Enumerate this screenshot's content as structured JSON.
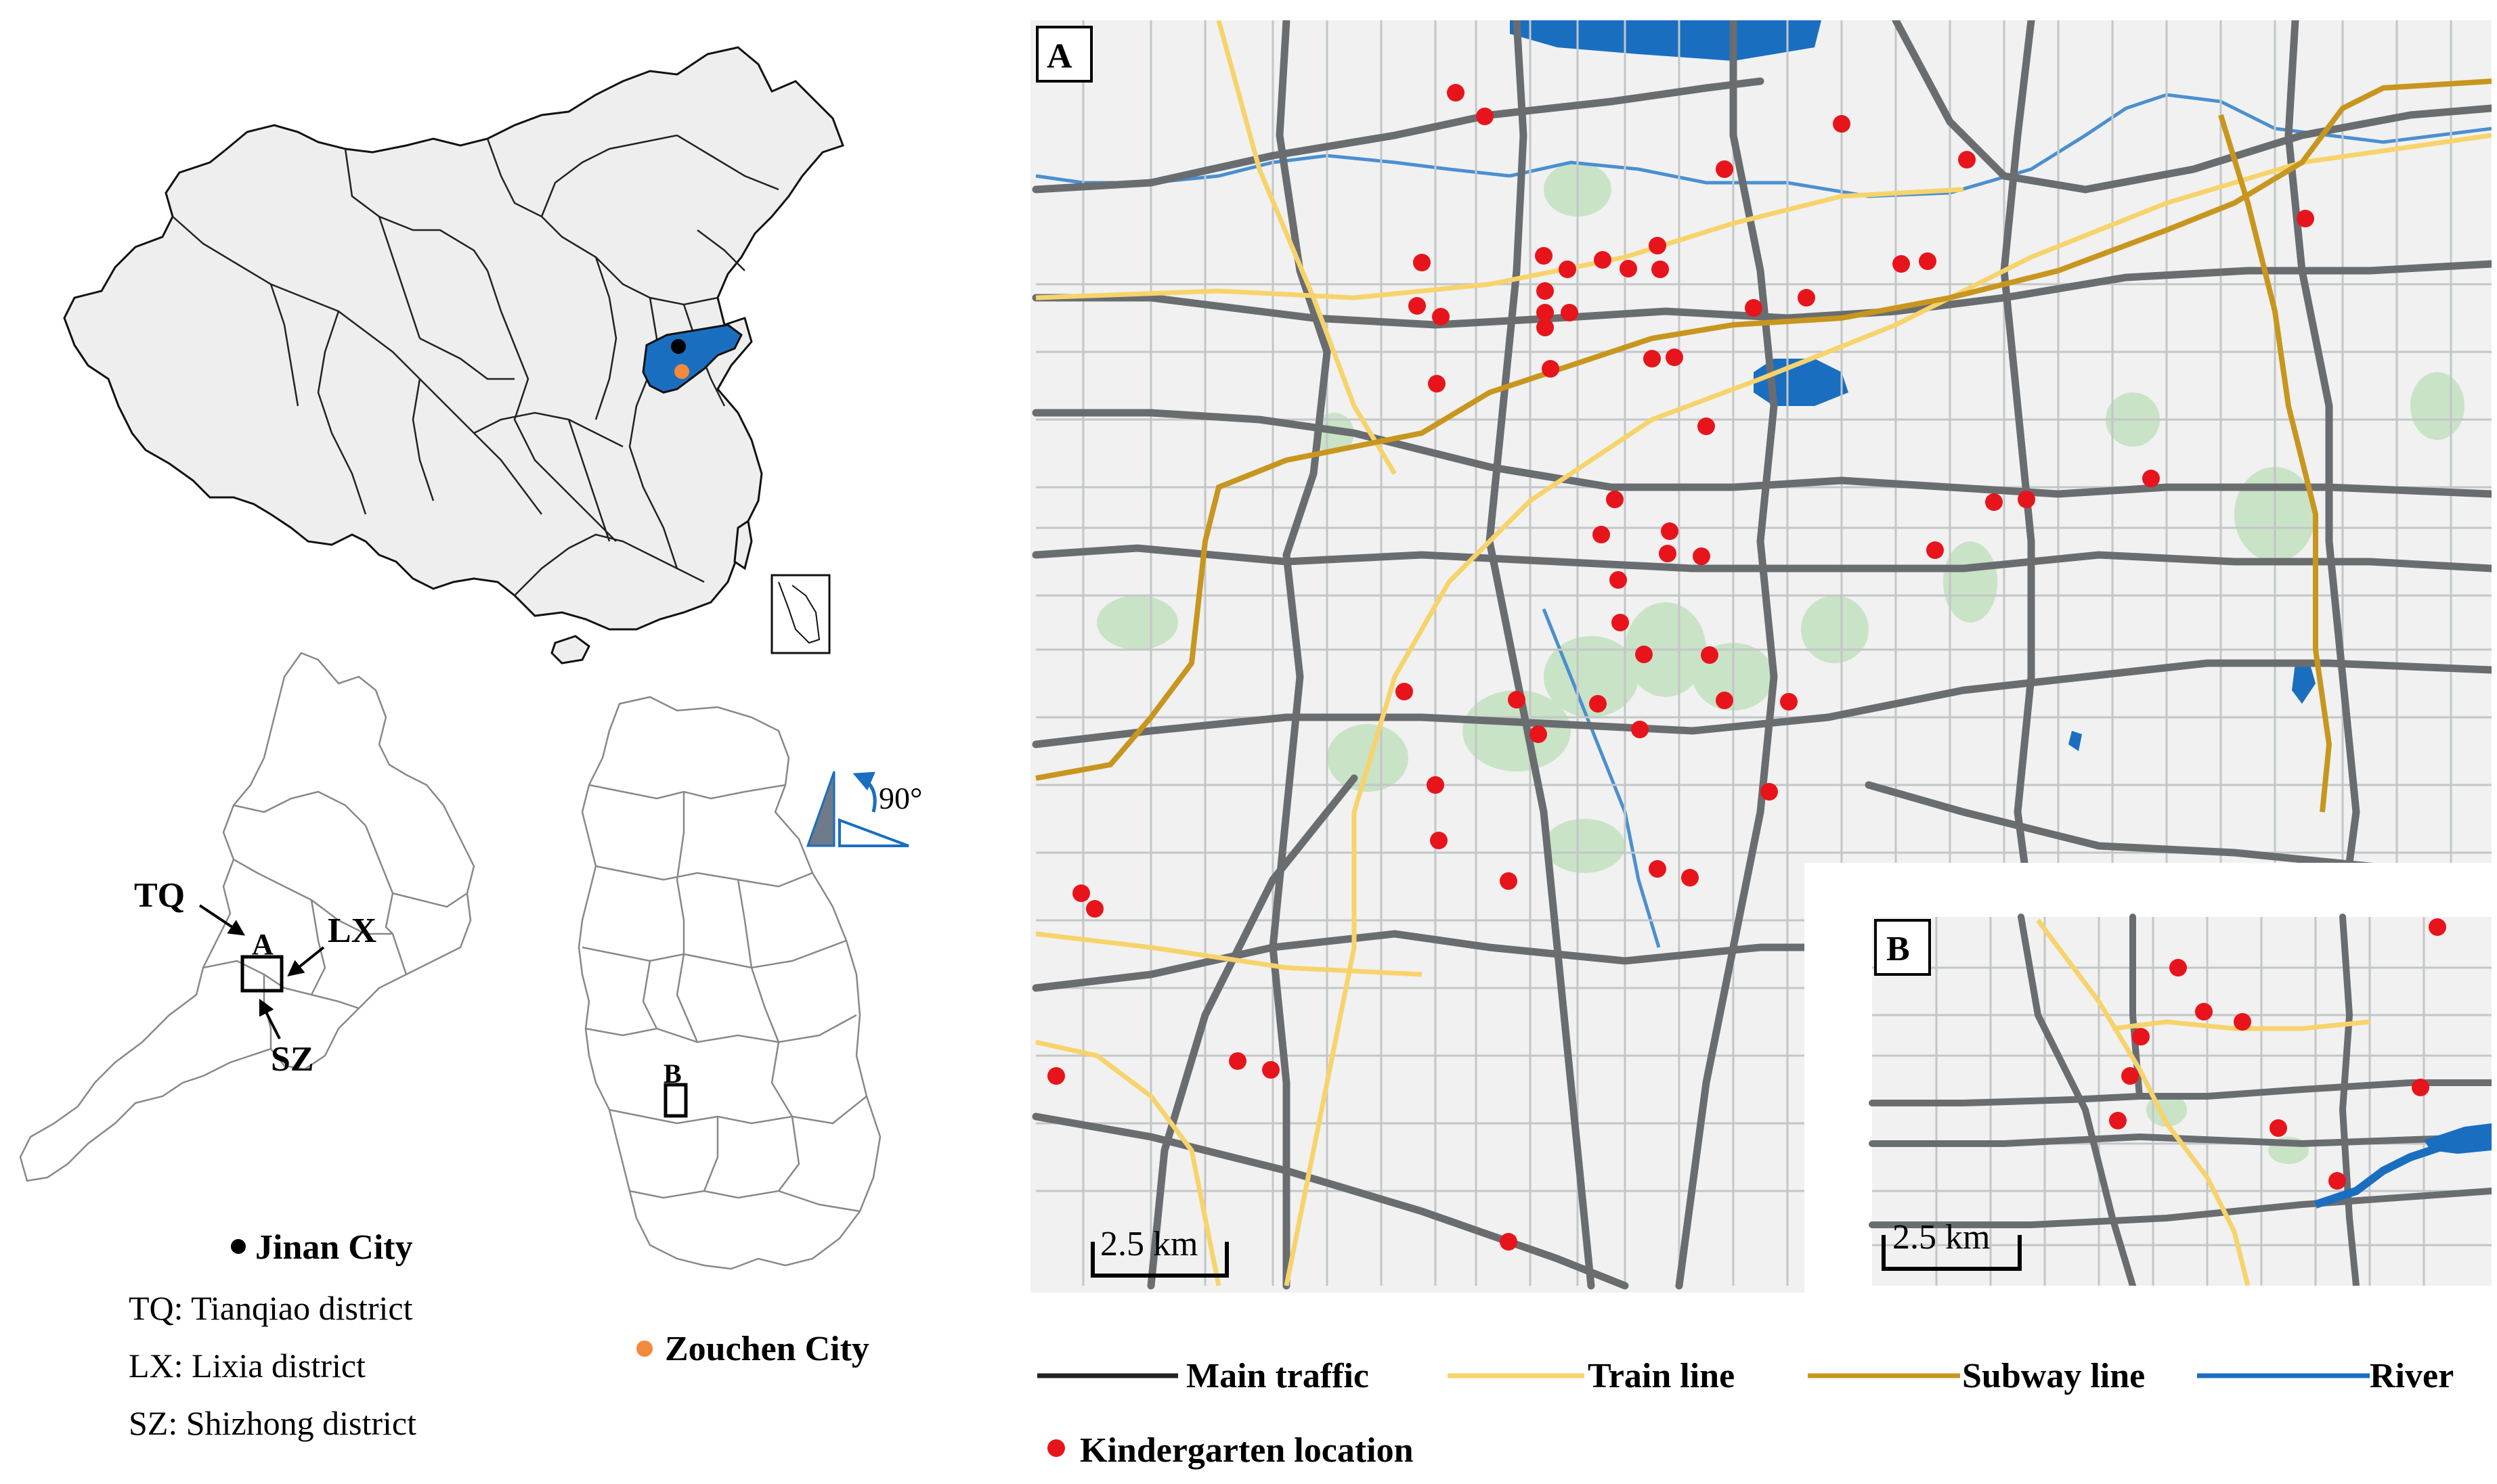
{
  "china_map": {
    "markers": [
      {
        "name": "Jinan City",
        "color": "#000000"
      },
      {
        "name": "Zouchen City",
        "color": "#f28a3c"
      }
    ],
    "province_fill": "#1a6ec0",
    "land_fill": "#eeeeee"
  },
  "jinan_map": {
    "box_label": "A",
    "arrows": [
      {
        "label": "TQ"
      },
      {
        "label": "LX"
      },
      {
        "label": "SZ"
      }
    ],
    "legend": {
      "city": "Jinan City",
      "lines": [
        "TQ: Tianqiao district",
        "LX: Lixia district",
        "SZ: Shizhong district"
      ]
    }
  },
  "zouchen_map": {
    "box_label": "B",
    "rotation_label": "90°",
    "legend": {
      "city": "Zouchen City"
    }
  },
  "panel_a": {
    "label": "A",
    "scale_label": "2.5 km"
  },
  "panel_b": {
    "label": "B",
    "scale_label": "2.5 km"
  },
  "legend": {
    "items": [
      {
        "label": "Main traffic",
        "color": "#222222"
      },
      {
        "label": "Train line",
        "color": "#f7d36b"
      },
      {
        "label": "Subway line",
        "color": "#c8961e"
      },
      {
        "label": "River",
        "color": "#1a6ec0"
      }
    ],
    "point": {
      "label": "Kindergarten location",
      "color": "#e8141b"
    }
  },
  "colors": {
    "map_bg": "#f0f1f0",
    "park": "#c9e3c6",
    "water": "#1a6ec0",
    "road_main": "#666666",
    "road_minor": "#b9bcbd",
    "point": "#e8141b"
  }
}
